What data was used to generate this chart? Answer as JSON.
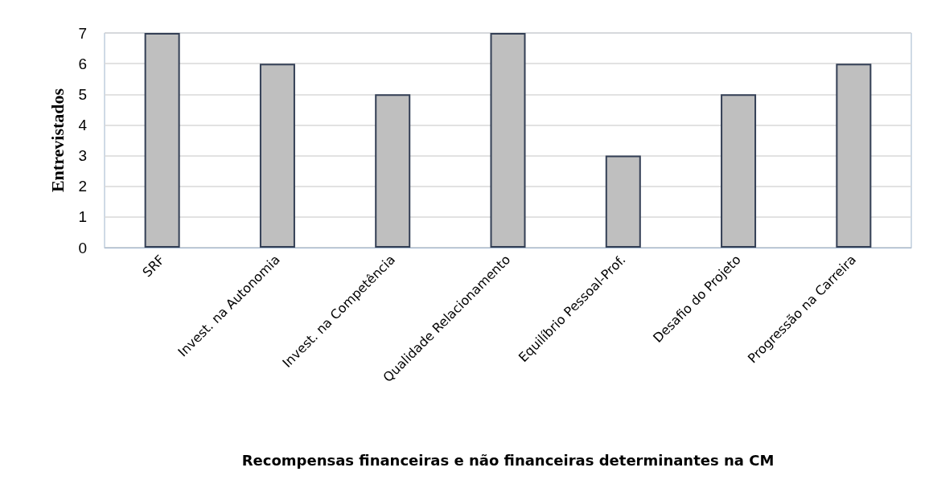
{
  "chart_data": {
    "type": "bar",
    "xlabel": "Recompensas financeiras e não financeiras determinantes na CM",
    "ylabel": "Entrevistados",
    "categories": [
      "SRF",
      "Invest. na Autonomia",
      "Invest. na Competência",
      "Qualidade Relacionamento",
      "Equilíbrio Pessoal-Prof.",
      "Desafio do Projeto",
      "Progressão na Carreira"
    ],
    "values": [
      7,
      6,
      5,
      7,
      3,
      5,
      6
    ],
    "color": "#bfbfbf",
    "ylim": [
      0,
      7
    ],
    "yticks": [
      0,
      1,
      2,
      3,
      4,
      5,
      6,
      7
    ],
    "grid": "y"
  }
}
